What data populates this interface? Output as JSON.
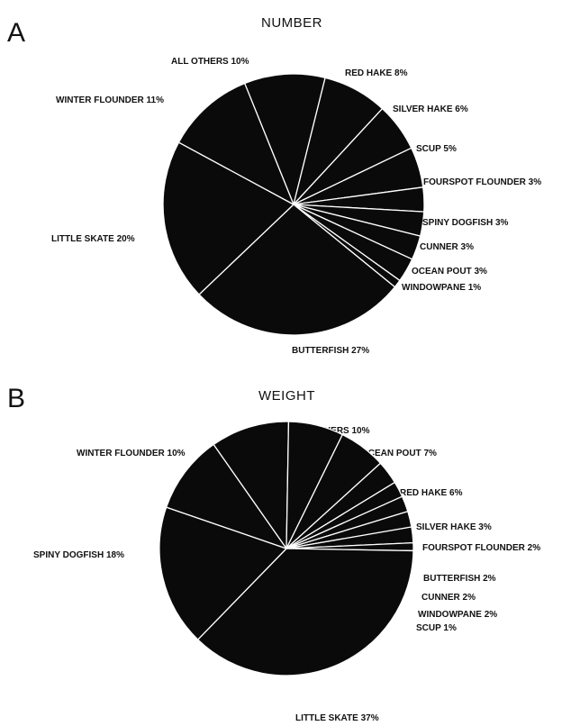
{
  "panels": [
    {
      "letter": "A",
      "title": "NUMBER"
    },
    {
      "letter": "B",
      "title": "WEIGHT"
    }
  ],
  "chart_data": [
    {
      "type": "pie",
      "title": "NUMBER",
      "slices": [
        {
          "label": "ALL OTHERS 10%",
          "name": "ALL OTHERS",
          "value": 10
        },
        {
          "label": "RED HAKE 8%",
          "name": "RED HAKE",
          "value": 8
        },
        {
          "label": "SILVER HAKE 6%",
          "name": "SILVER HAKE",
          "value": 6
        },
        {
          "label": "SCUP 5%",
          "name": "SCUP",
          "value": 5
        },
        {
          "label": "FOURSPOT FLOUNDER 3%",
          "name": "FOURSPOT FLOUNDER",
          "value": 3
        },
        {
          "label": "SPINY DOGFISH 3%",
          "name": "SPINY DOGFISH",
          "value": 3
        },
        {
          "label": "CUNNER 3%",
          "name": "CUNNER",
          "value": 3
        },
        {
          "label": "OCEAN POUT 3%",
          "name": "OCEAN POUT",
          "value": 3
        },
        {
          "label": "WINDOWPANE 1%",
          "name": "WINDOWPANE",
          "value": 1
        },
        {
          "label": "BUTTERFISH 27%",
          "name": "BUTTERFISH",
          "value": 27
        },
        {
          "label": "LITTLE SKATE 20%",
          "name": "LITTLE SKATE",
          "value": 20
        },
        {
          "label": "WINTER FLOUNDER 11%",
          "name": "WINTER FLOUNDER",
          "value": 11
        }
      ],
      "slice_color": "#0a0a0a",
      "separator_color": "#ffffff"
    },
    {
      "type": "pie",
      "title": "WEIGHT",
      "slices": [
        {
          "label": "ALL OTHERS 10%",
          "name": "ALL OTHERS",
          "value": 10
        },
        {
          "label": "OCEAN POUT 7%",
          "name": "OCEAN POUT",
          "value": 7
        },
        {
          "label": "RED HAKE 6%",
          "name": "RED HAKE",
          "value": 6
        },
        {
          "label": "SILVER HAKE 3%",
          "name": "SILVER HAKE",
          "value": 3
        },
        {
          "label": "FOURSPOT FLOUNDER 2%",
          "name": "FOURSPOT FLOUNDER",
          "value": 2
        },
        {
          "label": "BUTTERFISH 2%",
          "name": "BUTTERFISH",
          "value": 2
        },
        {
          "label": "CUNNER 2%",
          "name": "CUNNER",
          "value": 2
        },
        {
          "label": "WINDOWPANE 2%",
          "name": "WINDOWPANE",
          "value": 2
        },
        {
          "label": "SCUP 1%",
          "name": "SCUP",
          "value": 1
        },
        {
          "label": "LITTLE SKATE 37%",
          "name": "LITTLE SKATE",
          "value": 37
        },
        {
          "label": "SPINY DOGFISH 18%",
          "name": "SPINY DOGFISH",
          "value": 18
        },
        {
          "label": "WINTER FLOUNDER 10%",
          "name": "WINTER FLOUNDER",
          "value": 10
        }
      ],
      "slice_color": "#0a0a0a",
      "separator_color": "#ffffff"
    }
  ]
}
